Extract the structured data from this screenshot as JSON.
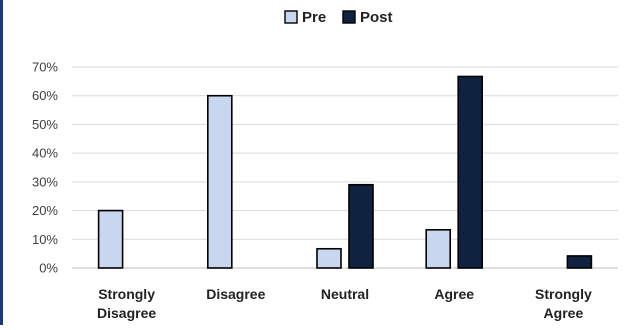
{
  "chart_data": {
    "type": "bar",
    "title": "",
    "xlabel": "",
    "ylabel": "",
    "categories": [
      [
        "Strongly",
        "Disagree"
      ],
      [
        "Disagree"
      ],
      [
        "Neutral"
      ],
      [
        "Agree"
      ],
      [
        "Strongly",
        "Agree"
      ]
    ],
    "series": [
      {
        "name": "Pre",
        "values": [
          20,
          60,
          6.7,
          13.3,
          0
        ],
        "color": "#c9d6ef"
      },
      {
        "name": "Post",
        "values": [
          0,
          0,
          29,
          66.7,
          4.2
        ],
        "color": "#0f2340"
      }
    ],
    "ylim": [
      0,
      70
    ],
    "yticks": [
      "0%",
      "10%",
      "20%",
      "30%",
      "40%",
      "50%",
      "60%",
      "70%"
    ],
    "legend_position": "top-center",
    "grid": true,
    "grid_color": "#d9d9d9",
    "bar_stroke_color": "#000000"
  }
}
